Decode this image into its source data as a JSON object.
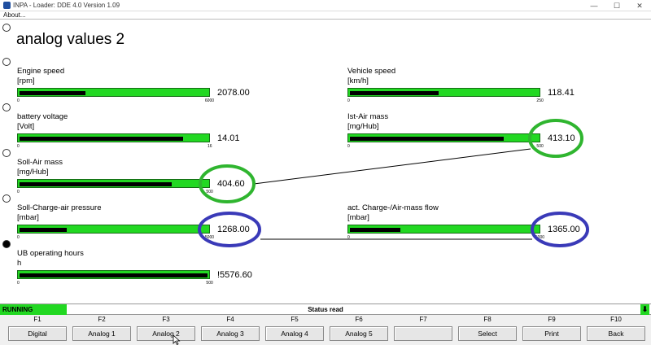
{
  "window": {
    "title": "INPA - Loader: DDE 4.0 Version 1.09",
    "controls": [
      "—",
      "☐",
      "✕"
    ]
  },
  "menu": {
    "about": "About..."
  },
  "page": {
    "title": "analog values 2"
  },
  "gauges": [
    {
      "label": "Engine speed",
      "unit": "[rpm]",
      "min": "0",
      "max": "6000",
      "value": "2078.00",
      "level": 0.35
    },
    {
      "label": "Vehicle speed",
      "unit": "[km/h]",
      "min": "0",
      "max": "250",
      "value": "118.41",
      "level": 0.47
    },
    {
      "label": "battery voltage",
      "unit": "[Volt]",
      "min": "0",
      "max": "16",
      "value": "14.01",
      "level": 0.87
    },
    {
      "label": "Ist-Air mass",
      "unit": "[mg/Hub]",
      "min": "0",
      "max": "500",
      "value": "413.10",
      "level": 0.82
    },
    {
      "label": "Soll-Air mass",
      "unit": "[mg/Hub]",
      "min": "0",
      "max": "500",
      "value": "404.60",
      "level": 0.81
    },
    {
      "label": "Soll-Charge-air pressure",
      "unit": "[mbar]",
      "min": "0",
      "max": "5000",
      "value": "1268.00",
      "level": 0.25
    },
    {
      "label": "act. Charge-/Air-mass flow",
      "unit": "[mbar]",
      "min": "0",
      "max": "5000",
      "value": "1365.00",
      "level": 0.27
    },
    {
      "label": "UB operating hours",
      "unit": "h",
      "min": "0",
      "max": "500",
      "value": "!5576.60",
      "level": 1.0
    }
  ],
  "annotations": {
    "green": "#2fb52f",
    "blue": "#3a3ab8"
  },
  "status": {
    "state": "RUNNING",
    "message": "Status read"
  },
  "function_keys": [
    {
      "key": "F1",
      "label": "Digital"
    },
    {
      "key": "F2",
      "label": "Analog 1"
    },
    {
      "key": "F3",
      "label": "Analog 2"
    },
    {
      "key": "F4",
      "label": "Analog 3"
    },
    {
      "key": "F5",
      "label": "Analog 4"
    },
    {
      "key": "F6",
      "label": "Analog 5"
    },
    {
      "key": "F7",
      "label": ""
    },
    {
      "key": "F8",
      "label": "Select"
    },
    {
      "key": "F9",
      "label": "Print"
    },
    {
      "key": "F10",
      "label": "Back"
    }
  ],
  "colors": {
    "bar": "#22d822",
    "fill": "#000000",
    "running": "#22d822"
  }
}
